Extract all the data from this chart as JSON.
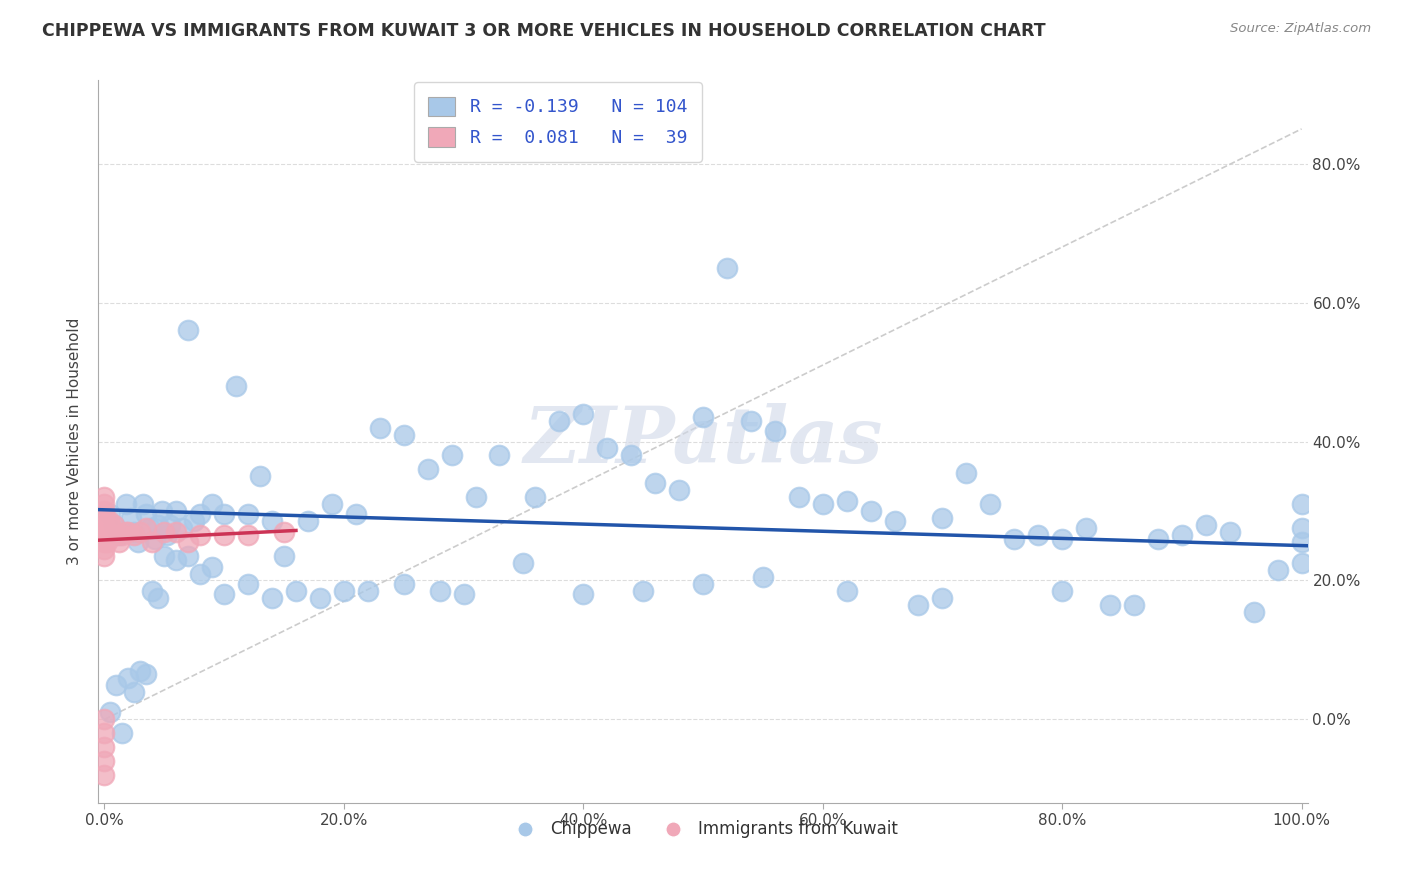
{
  "title": "CHIPPEWA VS IMMIGRANTS FROM KUWAIT 3 OR MORE VEHICLES IN HOUSEHOLD CORRELATION CHART",
  "source_text": "Source: ZipAtlas.com",
  "ylabel": "3 or more Vehicles in Household",
  "xlim": [
    -0.005,
    1.005
  ],
  "ylim": [
    -0.12,
    0.92
  ],
  "xticks": [
    0.0,
    0.2,
    0.4,
    0.6,
    0.8,
    1.0
  ],
  "yticks": [
    0.0,
    0.2,
    0.4,
    0.6,
    0.8
  ],
  "xtick_labels": [
    "0.0%",
    "20.0%",
    "40.0%",
    "60.0%",
    "80.0%",
    "100.0%"
  ],
  "ytick_labels": [
    "0.0%",
    "20.0%",
    "40.0%",
    "60.0%",
    "80.0%"
  ],
  "blue_color": "#a8c8e8",
  "pink_color": "#f0a8b8",
  "blue_line_color": "#2255aa",
  "pink_line_color": "#cc3355",
  "ref_line_color": "#cccccc",
  "grid_color": "#dddddd",
  "background_color": "#ffffff",
  "legend_R1": "-0.139",
  "legend_N1": "104",
  "legend_R2": "0.081",
  "legend_N2": "39",
  "watermark": "ZIPatlas",
  "legend_label1": "Chippewa",
  "legend_label2": "Immigrants from Kuwait",
  "blue_x": [
    0.005,
    0.008,
    0.012,
    0.018,
    0.022,
    0.025,
    0.028,
    0.032,
    0.035,
    0.038,
    0.042,
    0.045,
    0.048,
    0.052,
    0.055,
    0.06,
    0.065,
    0.07,
    0.075,
    0.08,
    0.09,
    0.1,
    0.11,
    0.12,
    0.13,
    0.14,
    0.15,
    0.17,
    0.19,
    0.21,
    0.23,
    0.25,
    0.27,
    0.29,
    0.31,
    0.33,
    0.36,
    0.38,
    0.4,
    0.42,
    0.44,
    0.46,
    0.48,
    0.5,
    0.52,
    0.54,
    0.56,
    0.58,
    0.6,
    0.62,
    0.64,
    0.66,
    0.68,
    0.7,
    0.72,
    0.74,
    0.76,
    0.78,
    0.8,
    0.82,
    0.84,
    0.86,
    0.88,
    0.9,
    0.92,
    0.94,
    0.96,
    0.98,
    1.0,
    1.0,
    1.0,
    1.0,
    0.005,
    0.01,
    0.015,
    0.02,
    0.025,
    0.03,
    0.035,
    0.04,
    0.045,
    0.05,
    0.06,
    0.07,
    0.08,
    0.09,
    0.1,
    0.12,
    0.14,
    0.16,
    0.18,
    0.2,
    0.22,
    0.25,
    0.28,
    0.3,
    0.35,
    0.4,
    0.45,
    0.5,
    0.55,
    0.62,
    0.7,
    0.8
  ],
  "blue_y": [
    0.295,
    0.28,
    0.265,
    0.31,
    0.29,
    0.27,
    0.255,
    0.31,
    0.295,
    0.275,
    0.26,
    0.28,
    0.3,
    0.265,
    0.28,
    0.3,
    0.275,
    0.56,
    0.285,
    0.295,
    0.31,
    0.295,
    0.48,
    0.295,
    0.35,
    0.285,
    0.235,
    0.285,
    0.31,
    0.295,
    0.42,
    0.41,
    0.36,
    0.38,
    0.32,
    0.38,
    0.32,
    0.43,
    0.44,
    0.39,
    0.38,
    0.34,
    0.33,
    0.435,
    0.65,
    0.43,
    0.415,
    0.32,
    0.31,
    0.315,
    0.3,
    0.285,
    0.165,
    0.29,
    0.355,
    0.31,
    0.26,
    0.265,
    0.26,
    0.275,
    0.165,
    0.165,
    0.26,
    0.265,
    0.28,
    0.27,
    0.155,
    0.215,
    0.31,
    0.275,
    0.255,
    0.225,
    0.01,
    0.05,
    -0.02,
    0.06,
    0.04,
    0.07,
    0.065,
    0.185,
    0.175,
    0.235,
    0.23,
    0.235,
    0.21,
    0.22,
    0.18,
    0.195,
    0.175,
    0.185,
    0.175,
    0.185,
    0.185,
    0.195,
    0.185,
    0.18,
    0.225,
    0.18,
    0.185,
    0.195,
    0.205,
    0.185,
    0.175,
    0.185
  ],
  "pink_x": [
    0.0,
    0.0,
    0.0,
    0.0,
    0.0,
    0.0,
    0.0,
    0.0,
    0.0,
    0.0,
    0.0,
    0.0,
    0.0,
    0.0,
    0.0,
    0.0,
    0.0,
    0.002,
    0.003,
    0.004,
    0.005,
    0.006,
    0.008,
    0.01,
    0.012,
    0.015,
    0.018,
    0.02,
    0.025,
    0.03,
    0.035,
    0.04,
    0.05,
    0.06,
    0.07,
    0.08,
    0.1,
    0.12,
    0.15
  ],
  "pink_y": [
    0.275,
    0.26,
    0.245,
    0.28,
    0.27,
    0.295,
    0.31,
    0.32,
    0.3,
    0.265,
    0.255,
    0.235,
    -0.08,
    -0.06,
    -0.04,
    -0.02,
    0.0,
    0.255,
    0.27,
    0.285,
    0.265,
    0.275,
    0.28,
    0.265,
    0.255,
    0.265,
    0.27,
    0.27,
    0.265,
    0.27,
    0.275,
    0.255,
    0.27,
    0.27,
    0.255,
    0.265,
    0.265,
    0.265,
    0.27
  ],
  "ref_line_x": [
    0.0,
    1.0
  ],
  "ref_line_y": [
    0.0,
    0.85
  ],
  "blue_trend_x": [
    -0.005,
    1.005
  ],
  "blue_trend_y": [
    0.302,
    0.25
  ],
  "pink_trend_x": [
    -0.005,
    0.16
  ],
  "pink_trend_y": [
    0.258,
    0.272
  ]
}
